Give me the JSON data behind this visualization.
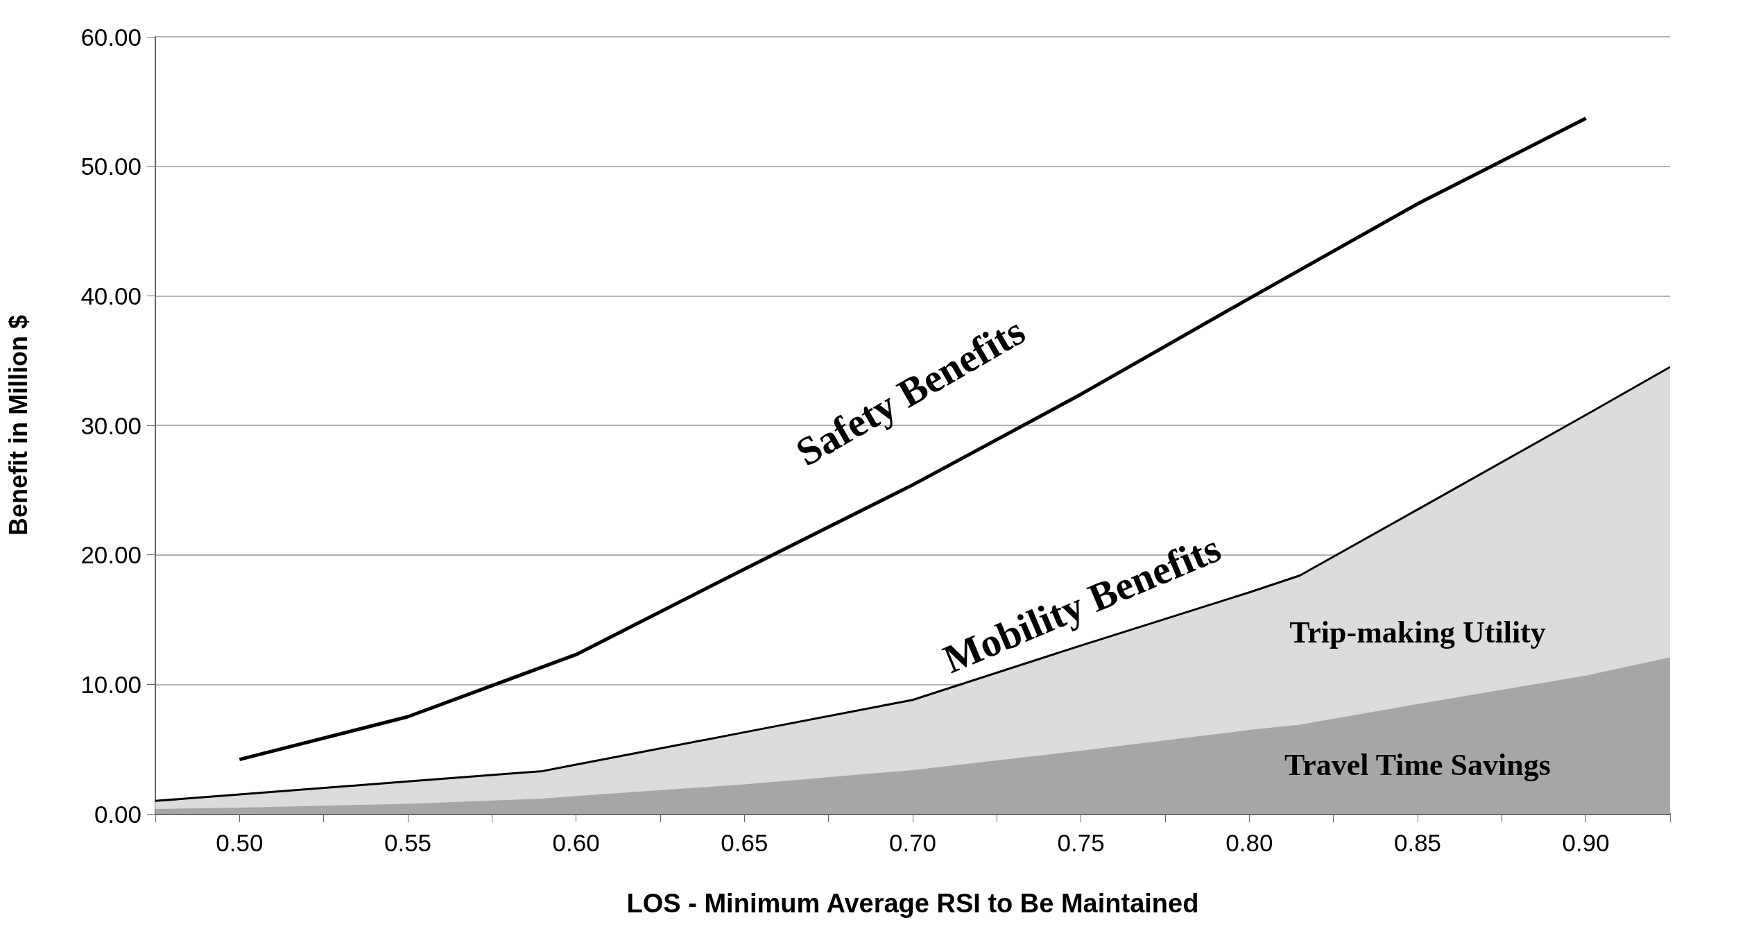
{
  "chart_data": {
    "type": "area",
    "xlabel": "LOS - Minimum Average RSI to Be Maintained",
    "ylabel": "Benefit in Million $",
    "x": [
      0.475,
      0.5,
      0.55,
      0.59,
      0.6,
      0.65,
      0.7,
      0.75,
      0.8,
      0.815,
      0.85,
      0.9,
      0.925
    ],
    "stacked": true,
    "series": [
      {
        "name": "Travel Time Savings",
        "color": "#a6a6a6",
        "values": [
          0.3,
          0.4,
          0.7,
          1.1,
          1.3,
          2.2,
          3.3,
          4.8,
          6.4,
          6.8,
          8.4,
          10.6,
          12.0
        ]
      },
      {
        "name": "Trip-making Utility",
        "color": "#dcdcdc",
        "values": [
          0.7,
          1.1,
          1.8,
          2.2,
          2.5,
          4.1,
          5.5,
          8.2,
          10.7,
          11.6,
          15.1,
          20.2,
          22.5
        ]
      },
      {
        "name": "Safety Benefits",
        "type": "line",
        "color": "#000000",
        "x": [
          0.5,
          0.55,
          0.6,
          0.65,
          0.7,
          0.75,
          0.8,
          0.85,
          0.9
        ],
        "values": [
          4.2,
          7.5,
          12.3,
          18.9,
          25.4,
          32.4,
          39.8,
          47.1,
          53.7
        ]
      }
    ],
    "annotations": [
      "Mobility Benefits"
    ],
    "xlim": [
      0.475,
      0.925
    ],
    "xticks": [
      {
        "value": 0.475,
        "label": null
      },
      {
        "value": 0.5,
        "label": "0.50"
      },
      {
        "value": 0.525,
        "label": null
      },
      {
        "value": 0.55,
        "label": "0.55"
      },
      {
        "value": 0.575,
        "label": null
      },
      {
        "value": 0.6,
        "label": "0.60"
      },
      {
        "value": 0.625,
        "label": null
      },
      {
        "value": 0.65,
        "label": "0.65"
      },
      {
        "value": 0.675,
        "label": null
      },
      {
        "value": 0.7,
        "label": "0.70"
      },
      {
        "value": 0.725,
        "label": null
      },
      {
        "value": 0.75,
        "label": "0.75"
      },
      {
        "value": 0.775,
        "label": null
      },
      {
        "value": 0.8,
        "label": "0.80"
      },
      {
        "value": 0.825,
        "label": null
      },
      {
        "value": 0.85,
        "label": "0.85"
      },
      {
        "value": 0.875,
        "label": null
      },
      {
        "value": 0.9,
        "label": "0.90"
      },
      {
        "value": 0.925,
        "label": null
      }
    ],
    "ylim": [
      0,
      60
    ],
    "yticks": [
      {
        "value": 0,
        "label": "0.00"
      },
      {
        "value": 10,
        "label": "10.00"
      },
      {
        "value": 20,
        "label": "20.00"
      },
      {
        "value": 30,
        "label": "30.00"
      },
      {
        "value": 40,
        "label": "40.00"
      },
      {
        "value": 50,
        "label": "50.00"
      },
      {
        "value": 60,
        "label": "60.00"
      }
    ],
    "grid": "y",
    "legend": false,
    "marker": "none"
  }
}
